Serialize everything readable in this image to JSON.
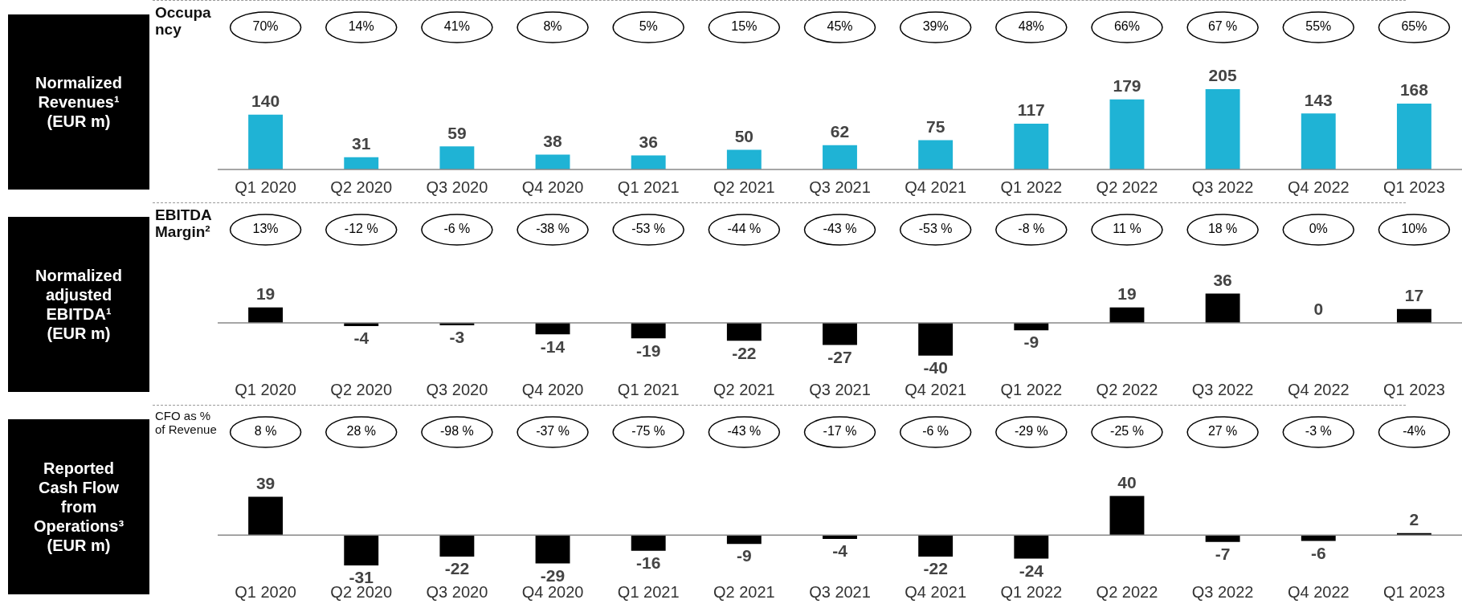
{
  "chart_data": [
    {
      "type": "bar",
      "subtitle": "Occupancy",
      "ylabel": "Normalized Revenues¹ (EUR m)",
      "categories": [
        "Q1 2020",
        "Q2 2020",
        "Q3 2020",
        "Q4 2020",
        "Q1 2021",
        "Q2 2021",
        "Q3 2021",
        "Q4 2021",
        "Q1 2022",
        "Q2 2022",
        "Q3 2022",
        "Q4 2022",
        "Q1 2023"
      ],
      "values": [
        140,
        31,
        59,
        38,
        36,
        50,
        62,
        75,
        117,
        179,
        205,
        143,
        168
      ],
      "color": "#1fb3d5",
      "data_labels": true,
      "annotations": [
        "70%",
        "14%",
        "41%",
        "8%",
        "5%",
        "15%",
        "45%",
        "39%",
        "48%",
        "66%",
        "67 %",
        "55%",
        "65%"
      ]
    },
    {
      "type": "bar",
      "subtitle": "EBITDA Margin²",
      "ylabel": "Normalized adjusted EBITDA¹ (EUR m)",
      "categories": [
        "Q1 2020",
        "Q2 2020",
        "Q3 2020",
        "Q4 2020",
        "Q1 2021",
        "Q2 2021",
        "Q3 2021",
        "Q4 2021",
        "Q1 2022",
        "Q2 2022",
        "Q3 2022",
        "Q4 2022",
        "Q1 2023"
      ],
      "values": [
        19,
        -4,
        -3,
        -14,
        -19,
        -22,
        -27,
        -40,
        -9,
        19,
        36,
        0,
        17
      ],
      "color": "#000000",
      "data_labels": true,
      "annotations": [
        "13%",
        "-12 %",
        "-6 %",
        "-38 %",
        "-53 %",
        "-44 %",
        "-43 %",
        "-53 %",
        "-8 %",
        "11 %",
        "18 %",
        "0%",
        "10%"
      ]
    },
    {
      "type": "bar",
      "subtitle": "CFO as % of Revenue",
      "ylabel": "Reported Cash Flow from Operations³ (EUR m)",
      "categories": [
        "Q1 2020",
        "Q2 2020",
        "Q3 2020",
        "Q4 2020",
        "Q1 2021",
        "Q2 2021",
        "Q3 2021",
        "Q4 2021",
        "Q1 2022",
        "Q2 2022",
        "Q3 2022",
        "Q4 2022",
        "Q1 2023"
      ],
      "values": [
        39,
        -31,
        -22,
        -29,
        -16,
        -9,
        -4,
        -22,
        -24,
        40,
        -7,
        -6,
        2
      ],
      "color": "#000000",
      "data_labels": true,
      "annotations": [
        "8 %",
        "28 %",
        "-98 %",
        "-37 %",
        "-75 %",
        "-43 %",
        "-17 %",
        "-6 %",
        "-29 %",
        "-25 %",
        "27 %",
        "-3 %",
        "-4%"
      ]
    }
  ]
}
